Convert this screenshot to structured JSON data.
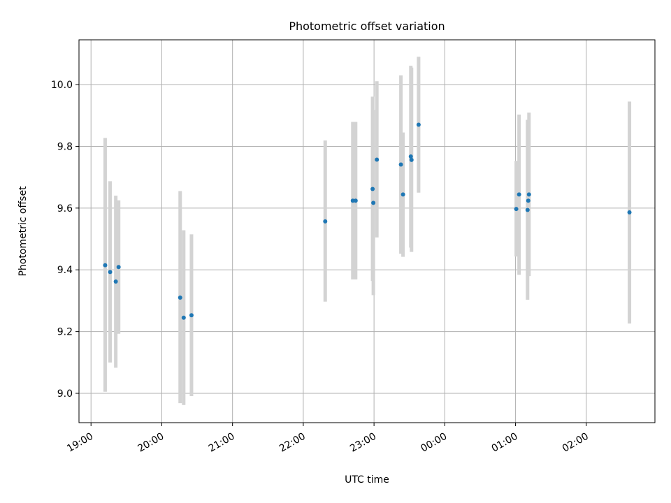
{
  "chart_data": {
    "type": "scatter",
    "title": "Photometric offset variation",
    "xlabel": "UTC time",
    "ylabel": "Photometric offset",
    "x_unit": "hours since 19:00 UTC",
    "xlim": [
      -0.17,
      7.97
    ],
    "ylim": [
      8.905,
      10.145
    ],
    "x_ticks": [
      {
        "value": 0,
        "label": "19:00"
      },
      {
        "value": 1,
        "label": "20:00"
      },
      {
        "value": 2,
        "label": "21:00"
      },
      {
        "value": 3,
        "label": "22:00"
      },
      {
        "value": 4,
        "label": "23:00"
      },
      {
        "value": 5,
        "label": "00:00"
      },
      {
        "value": 6,
        "label": "01:00"
      },
      {
        "value": 7,
        "label": "02:00"
      }
    ],
    "y_ticks": [
      {
        "value": 9.0,
        "label": "9.0"
      },
      {
        "value": 9.2,
        "label": "9.2"
      },
      {
        "value": 9.4,
        "label": "9.4"
      },
      {
        "value": 9.6,
        "label": "9.6"
      },
      {
        "value": 9.8,
        "label": "9.8"
      },
      {
        "value": 10.0,
        "label": "10.0"
      }
    ],
    "grid": true,
    "colors": {
      "points": "#1f77b4",
      "errorbars": "#d3d3d3",
      "grid": "#b0b0b0",
      "axes": "#000000"
    },
    "points": [
      {
        "x": 0.2,
        "y": 9.415,
        "lo": 9.005,
        "hi": 9.827
      },
      {
        "x": 0.27,
        "y": 9.393,
        "lo": 9.1,
        "hi": 9.687
      },
      {
        "x": 0.35,
        "y": 9.362,
        "lo": 9.083,
        "hi": 9.64
      },
      {
        "x": 0.39,
        "y": 9.409,
        "lo": 9.193,
        "hi": 9.625
      },
      {
        "x": 1.26,
        "y": 9.31,
        "lo": 8.968,
        "hi": 9.655
      },
      {
        "x": 1.31,
        "y": 9.245,
        "lo": 8.962,
        "hi": 9.528
      },
      {
        "x": 1.42,
        "y": 9.253,
        "lo": 8.991,
        "hi": 9.515
      },
      {
        "x": 3.31,
        "y": 9.557,
        "lo": 9.297,
        "hi": 9.819
      },
      {
        "x": 3.7,
        "y": 9.624,
        "lo": 9.369,
        "hi": 9.879
      },
      {
        "x": 3.74,
        "y": 9.624,
        "lo": 9.369,
        "hi": 9.879
      },
      {
        "x": 3.98,
        "y": 9.662,
        "lo": 9.364,
        "hi": 9.961
      },
      {
        "x": 3.99,
        "y": 9.617,
        "lo": 9.318,
        "hi": 9.918
      },
      {
        "x": 4.04,
        "y": 9.757,
        "lo": 9.505,
        "hi": 10.011
      },
      {
        "x": 4.38,
        "y": 9.741,
        "lo": 9.452,
        "hi": 10.03
      },
      {
        "x": 4.41,
        "y": 9.644,
        "lo": 9.442,
        "hi": 9.845
      },
      {
        "x": 4.52,
        "y": 9.767,
        "lo": 9.472,
        "hi": 10.061
      },
      {
        "x": 4.53,
        "y": 9.756,
        "lo": 9.458,
        "hi": 10.055
      },
      {
        "x": 4.63,
        "y": 9.87,
        "lo": 9.65,
        "hi": 10.09
      },
      {
        "x": 6.01,
        "y": 9.597,
        "lo": 9.443,
        "hi": 9.753
      },
      {
        "x": 6.05,
        "y": 9.644,
        "lo": 9.384,
        "hi": 9.903
      },
      {
        "x": 6.17,
        "y": 9.594,
        "lo": 9.303,
        "hi": 9.886
      },
      {
        "x": 6.18,
        "y": 9.624,
        "lo": 9.38,
        "hi": 9.868
      },
      {
        "x": 6.19,
        "y": 9.644,
        "lo": 9.38,
        "hi": 9.909
      },
      {
        "x": 7.61,
        "y": 9.586,
        "lo": 9.226,
        "hi": 9.945
      }
    ]
  }
}
